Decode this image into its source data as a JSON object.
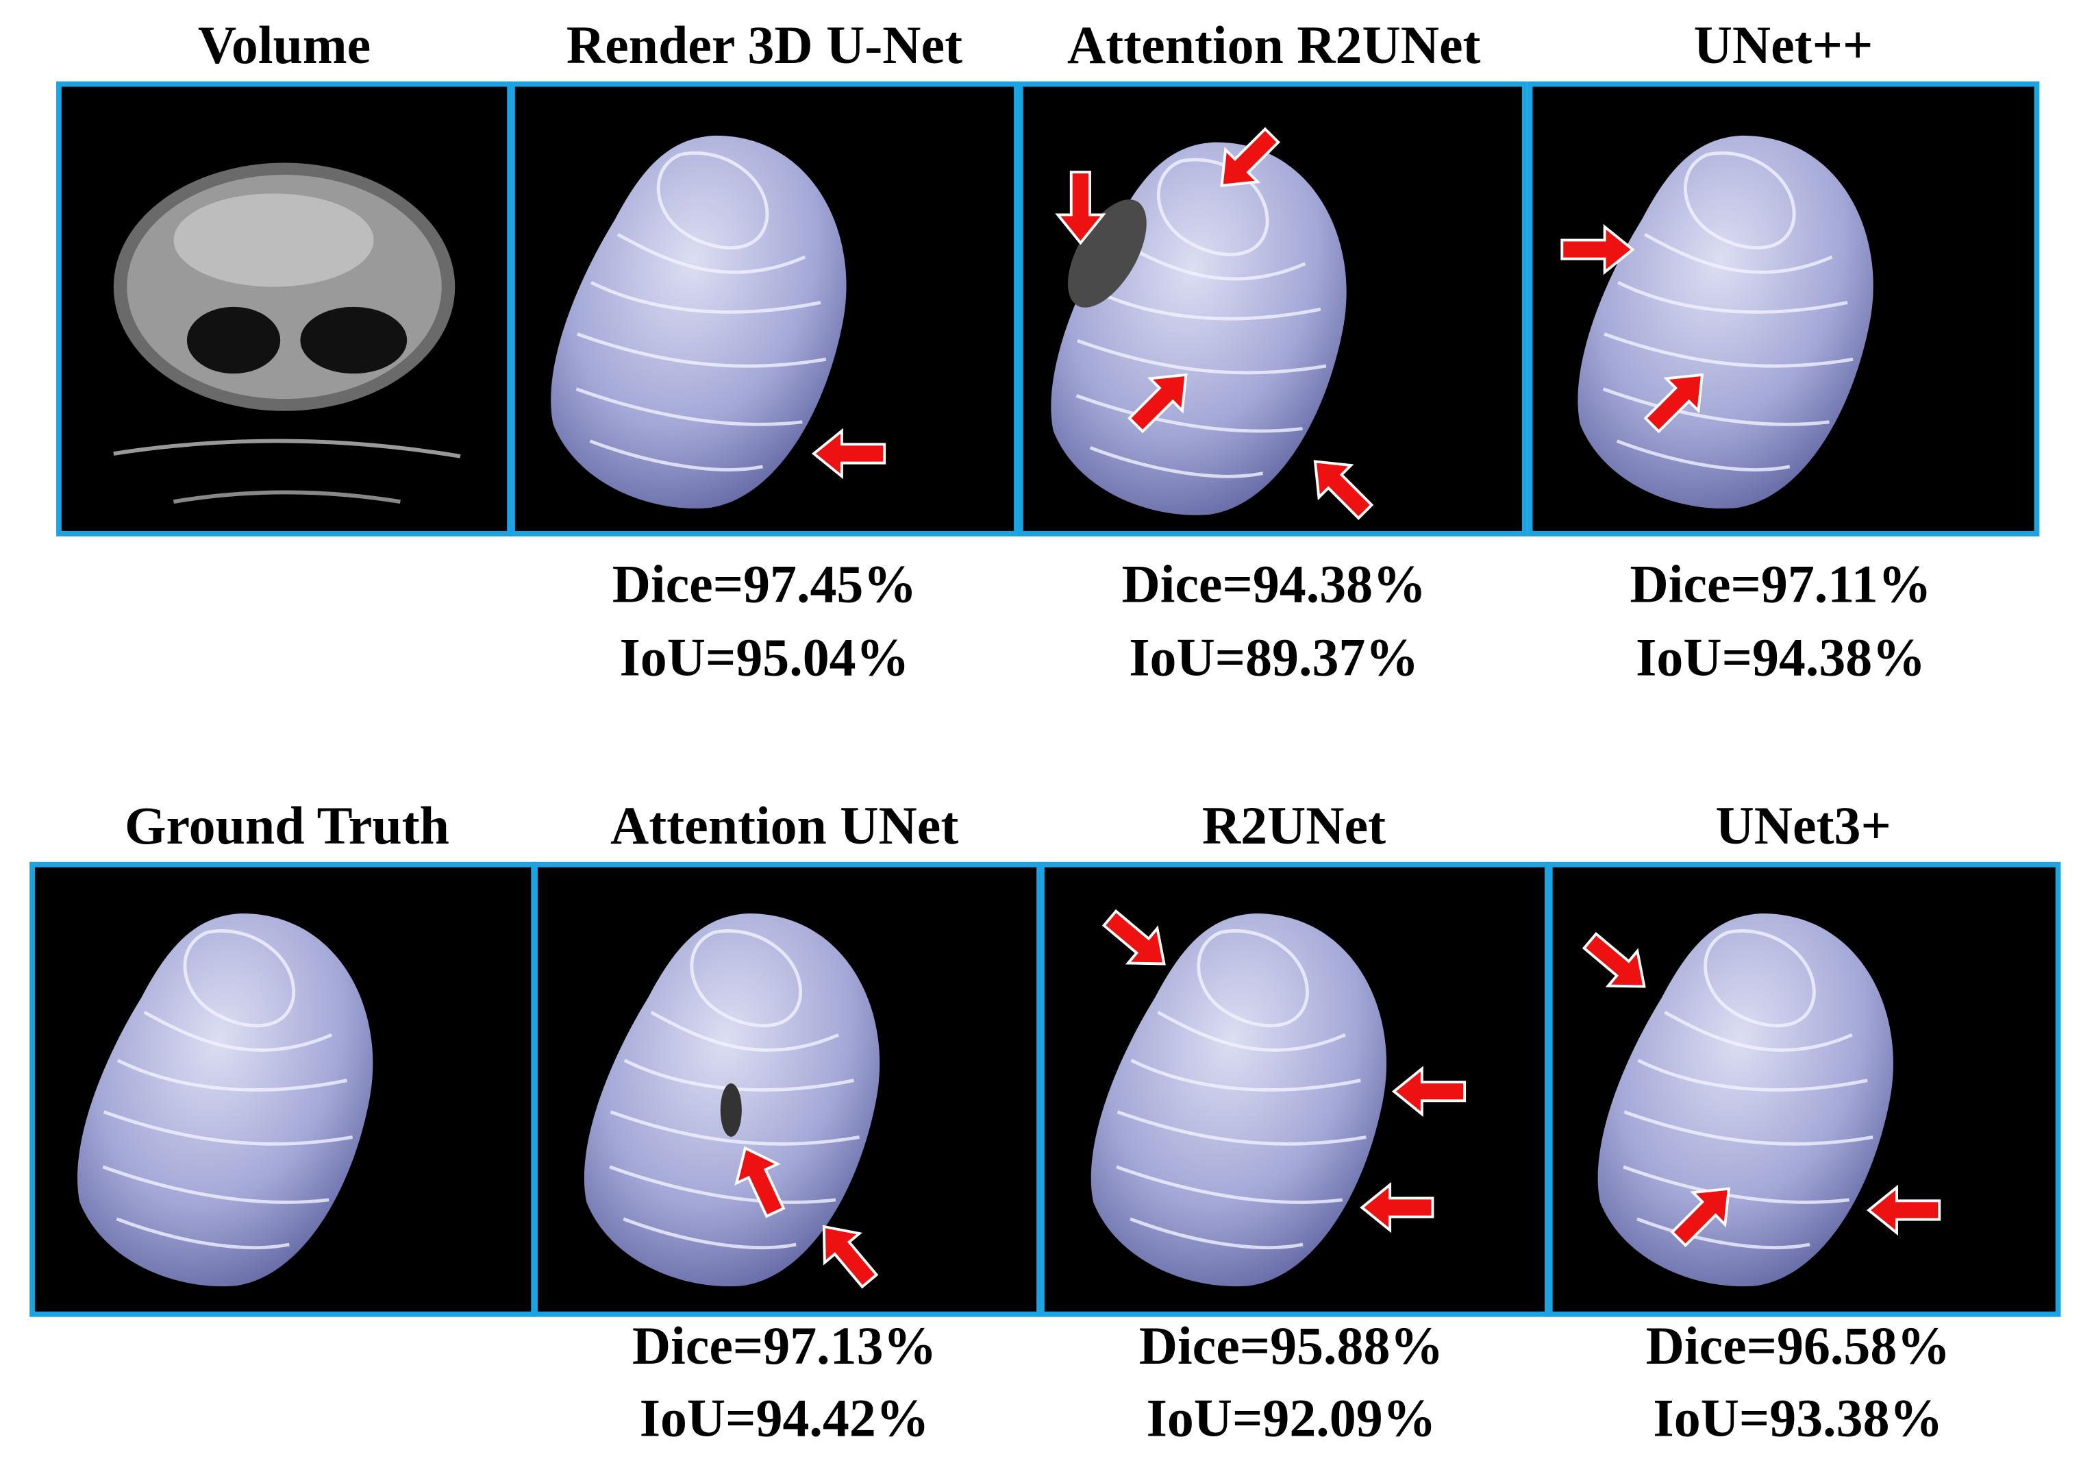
{
  "panels": [
    {
      "title": "Volume"
    },
    {
      "title": "Render 3D U-Net",
      "dice": "Dice=97.45%",
      "iou": "IoU=95.04%"
    },
    {
      "title": "Attention R2UNet",
      "dice": "Dice=94.38%",
      "iou": "IoU=89.37%"
    },
    {
      "title": "UNet++",
      "dice": "Dice=97.11%",
      "iou": "IoU=94.38%"
    },
    {
      "title": "Ground Truth"
    },
    {
      "title": "Attention UNet",
      "dice": "Dice=97.13%",
      "iou": "IoU=94.42%"
    },
    {
      "title": "R2UNet",
      "dice": "Dice=95.88%",
      "iou": "IoU=92.09%"
    },
    {
      "title": "UNet3+",
      "dice": "Dice=96.58%",
      "iou": "IoU=93.38%"
    }
  ]
}
